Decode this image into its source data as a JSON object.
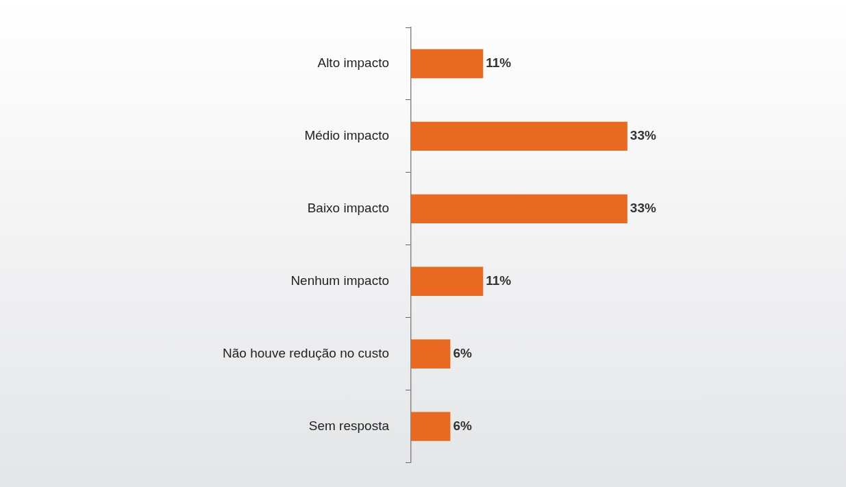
{
  "chart_data": {
    "type": "bar",
    "orientation": "horizontal",
    "categories": [
      "Alto impacto",
      "Médio impacto",
      "Baixo impacto",
      "Nenhum impacto",
      "Não houve redução no custo",
      "Sem resposta"
    ],
    "values": [
      11,
      33,
      33,
      11,
      6,
      6
    ],
    "value_labels": [
      "11%",
      "33%",
      "33%",
      "11%",
      "6%",
      "6%"
    ],
    "color": "#e8691f",
    "tick_labels": "y",
    "grid": false,
    "legend": false
  }
}
